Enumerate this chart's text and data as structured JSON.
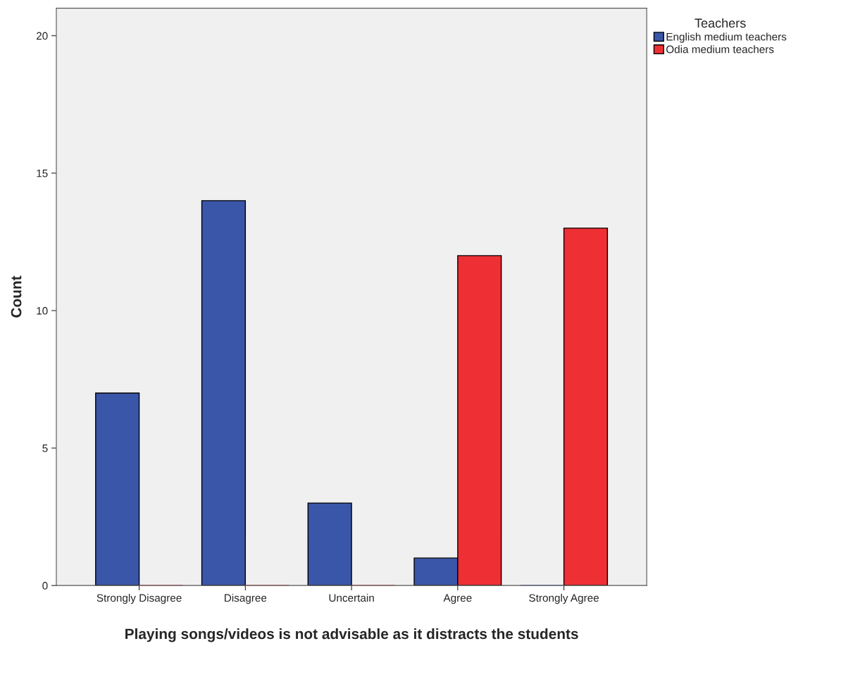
{
  "chart_data": {
    "type": "bar",
    "xlabel": "Playing songs/videos is not advisable as it distracts the students",
    "ylabel": "Count",
    "legend_title": "Teachers",
    "categories": [
      "Strongly Disagree",
      "Disagree",
      "Uncertain",
      "Agree",
      "Strongly Agree"
    ],
    "series": [
      {
        "name": "English medium teachers",
        "color": "#3a56a8",
        "values": [
          7,
          14,
          3,
          1,
          0
        ]
      },
      {
        "name": "Odia medium teachers",
        "color": "#ee3035",
        "values": [
          0,
          0,
          0,
          12,
          13
        ]
      }
    ],
    "ylim": [
      0,
      21
    ],
    "yticks": [
      0,
      5,
      10,
      15,
      20
    ],
    "grid": false,
    "legend": "top right"
  }
}
